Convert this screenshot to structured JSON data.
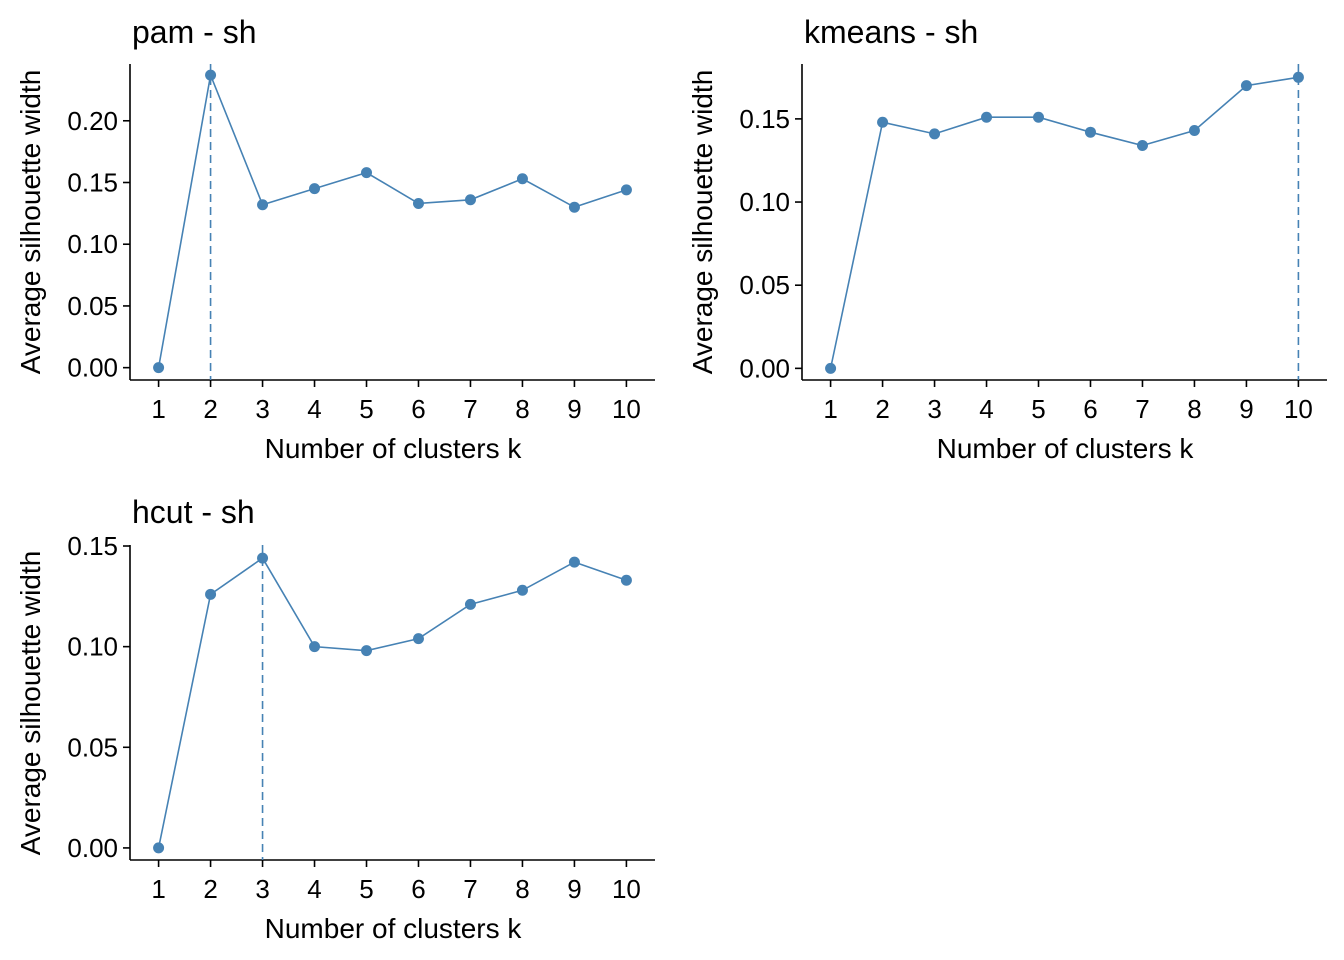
{
  "chart_data": [
    {
      "type": "line",
      "title": "pam - sh",
      "xlabel": "Number of clusters k",
      "ylabel": "Average silhouette width",
      "categories": [
        "1",
        "2",
        "3",
        "4",
        "5",
        "6",
        "7",
        "8",
        "9",
        "10"
      ],
      "series": [
        {
          "values": [
            0.0,
            0.237,
            0.132,
            0.145,
            0.158,
            0.133,
            0.136,
            0.153,
            0.13,
            0.144
          ]
        }
      ],
      "ylim": [
        -0.01,
        0.246
      ],
      "yticks": [
        0.0,
        0.05,
        0.1,
        0.15,
        0.2
      ],
      "ytick_labels": [
        "0.00",
        "0.05",
        "0.10",
        "0.15",
        "0.20"
      ],
      "optimal_k": 2,
      "grid": false,
      "color": "#4682B4"
    },
    {
      "type": "line",
      "title": "kmeans - sh",
      "xlabel": "Number of clusters k",
      "ylabel": "Average silhouette width",
      "categories": [
        "1",
        "2",
        "3",
        "4",
        "5",
        "6",
        "7",
        "8",
        "9",
        "10"
      ],
      "series": [
        {
          "values": [
            0.0,
            0.148,
            0.141,
            0.151,
            0.151,
            0.142,
            0.134,
            0.143,
            0.17,
            0.175
          ]
        }
      ],
      "ylim": [
        -0.007,
        0.183
      ],
      "yticks": [
        0.0,
        0.05,
        0.1,
        0.15
      ],
      "ytick_labels": [
        "0.00",
        "0.05",
        "0.10",
        "0.15"
      ],
      "optimal_k": 10,
      "grid": false,
      "color": "#4682B4"
    },
    {
      "type": "line",
      "title": "hcut - sh",
      "xlabel": "Number of clusters k",
      "ylabel": "Average silhouette width",
      "categories": [
        "1",
        "2",
        "3",
        "4",
        "5",
        "6",
        "7",
        "8",
        "9",
        "10"
      ],
      "series": [
        {
          "values": [
            0.0,
            0.126,
            0.144,
            0.1,
            0.098,
            0.104,
            0.121,
            0.128,
            0.142,
            0.133
          ]
        }
      ],
      "ylim": [
        -0.006,
        0.1505
      ],
      "yticks": [
        0.0,
        0.05,
        0.1,
        0.15
      ],
      "ytick_labels": [
        "0.00",
        "0.05",
        "0.10",
        "0.15"
      ],
      "optimal_k": 3,
      "grid": false,
      "color": "#4682B4"
    }
  ]
}
